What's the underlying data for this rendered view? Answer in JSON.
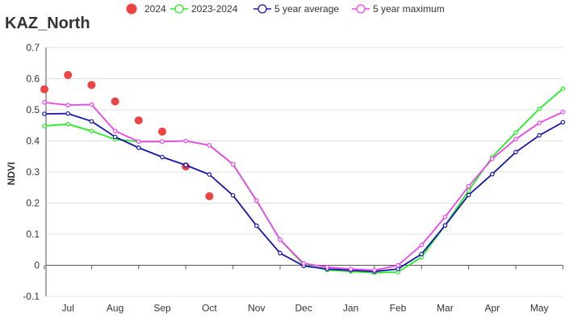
{
  "chart_data": {
    "type": "line",
    "title": "KAZ_North",
    "xlabel": "",
    "ylabel": "NDVI",
    "ylim": [
      -0.1,
      0.7
    ],
    "yticks": [
      -0.1,
      0,
      0.1,
      0.2,
      0.3,
      0.4,
      0.5,
      0.6,
      0.7
    ],
    "ytick_labels": [
      "-0.1",
      "0",
      "0.1",
      "0.2",
      "0.3",
      "0.4",
      "0.5",
      "0.6",
      "0.7"
    ],
    "x_range": [
      0,
      22.5
    ],
    "month_labels": [
      {
        "label": "Jul",
        "x": 1
      },
      {
        "label": "Aug",
        "x": 3
      },
      {
        "label": "Sep",
        "x": 5
      },
      {
        "label": "Oct",
        "x": 7
      },
      {
        "label": "Nov",
        "x": 9
      },
      {
        "label": "Dec",
        "x": 11
      },
      {
        "label": "Jan",
        "x": 13
      },
      {
        "label": "Feb",
        "x": 15
      },
      {
        "label": "Mar",
        "x": 17
      },
      {
        "label": "Apr",
        "x": 19
      },
      {
        "label": "May",
        "x": 21
      }
    ],
    "grid": true,
    "legend_position": "top-center",
    "series": [
      {
        "name": "2024",
        "style": "dots",
        "color": "#ee4444",
        "x": [
          0,
          1,
          2,
          3,
          4,
          5,
          6,
          7
        ],
        "values": [
          0.566,
          0.612,
          0.58,
          0.527,
          0.466,
          0.43,
          0.318,
          0.222
        ]
      },
      {
        "name": "2023-2024",
        "style": "line",
        "color": "#22ee22",
        "x": [
          0,
          1,
          2,
          3,
          4,
          5,
          6,
          7,
          8,
          9,
          10,
          11,
          12,
          13,
          14,
          15,
          16,
          17,
          18,
          19,
          20,
          21,
          22
        ],
        "values": [
          0.448,
          0.454,
          0.432,
          0.405,
          0.398,
          0.398,
          0.4,
          0.386,
          0.325,
          0.208,
          0.082,
          0.002,
          -0.015,
          -0.02,
          -0.024,
          -0.022,
          0.026,
          0.128,
          0.24,
          0.348,
          0.427,
          0.503,
          0.568
        ]
      },
      {
        "name": "5 year average",
        "style": "line",
        "color": "#1515aa",
        "x": [
          0,
          1,
          2,
          3,
          4,
          5,
          6,
          7,
          8,
          9,
          10,
          11,
          12,
          13,
          14,
          15,
          16,
          17,
          18,
          19,
          20,
          21,
          22
        ],
        "values": [
          0.487,
          0.488,
          0.463,
          0.413,
          0.378,
          0.348,
          0.322,
          0.292,
          0.225,
          0.127,
          0.039,
          -0.002,
          -0.012,
          -0.016,
          -0.02,
          -0.012,
          0.036,
          0.128,
          0.226,
          0.293,
          0.364,
          0.418,
          0.46
        ]
      },
      {
        "name": "5 year maximum",
        "style": "line",
        "color": "#ee44ee",
        "x": [
          0,
          1,
          2,
          3,
          4,
          5,
          6,
          7,
          8,
          9,
          10,
          11,
          12,
          13,
          14,
          15,
          16,
          17,
          18,
          19,
          20,
          21,
          22
        ],
        "values": [
          0.524,
          0.515,
          0.517,
          0.432,
          0.398,
          0.398,
          0.4,
          0.386,
          0.325,
          0.208,
          0.082,
          0.006,
          -0.006,
          -0.012,
          -0.016,
          0.0,
          0.065,
          0.155,
          0.254,
          0.342,
          0.406,
          0.458,
          0.493
        ]
      }
    ]
  }
}
